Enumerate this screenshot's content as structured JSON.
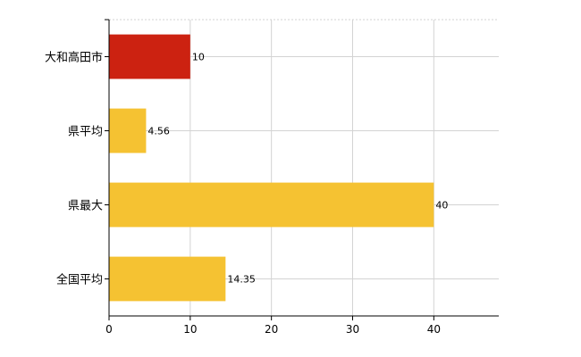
{
  "chart_data": {
    "type": "bar",
    "orientation": "horizontal",
    "title": "",
    "xlabel": "",
    "ylabel": "",
    "categories": [
      "大和高田市",
      "県平均",
      "県最大",
      "全国平均"
    ],
    "values": [
      10,
      4.56,
      40,
      14.35
    ],
    "value_labels": [
      "10",
      "4.56",
      "40",
      "14.35"
    ],
    "bar_colors": [
      "#cc2211",
      "#f5c232",
      "#f5c232",
      "#f5c232"
    ],
    "xlim": [
      0,
      48
    ],
    "xticks": [
      0,
      10,
      20,
      30,
      40
    ],
    "xtick_labels": [
      "0",
      "10",
      "20",
      "30",
      "40"
    ],
    "grid": true,
    "legend": "none"
  }
}
